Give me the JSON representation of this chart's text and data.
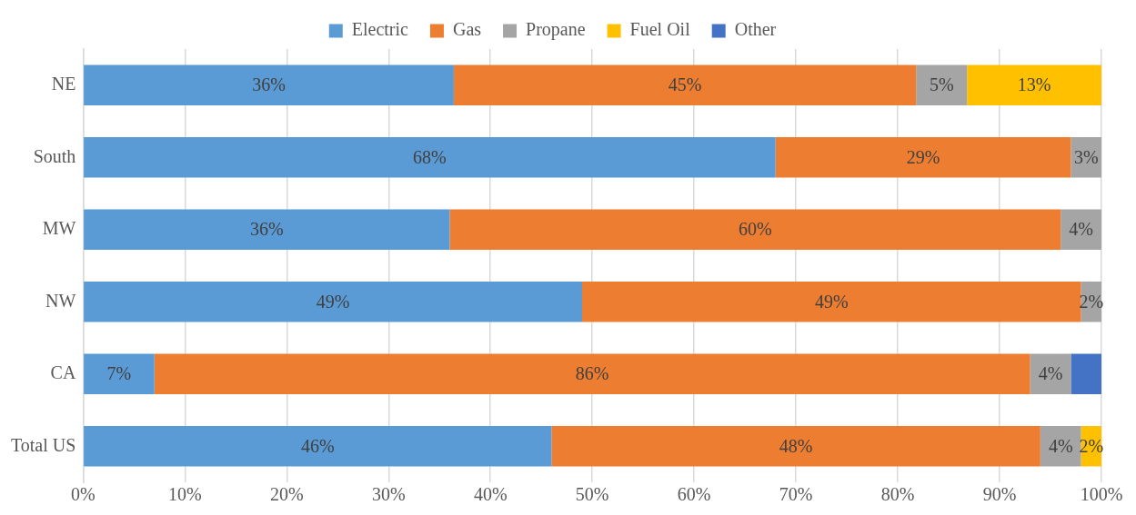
{
  "chart_data": {
    "type": "bar",
    "orientation": "horizontal",
    "stacked": true,
    "legend": "top",
    "grid": "x",
    "categories": [
      "NE",
      "South",
      "MW",
      "NW",
      "CA",
      "Total US"
    ],
    "xlim": [
      0,
      100
    ],
    "xticks": [
      {
        "value": 0,
        "label": "0%"
      },
      {
        "value": 10,
        "label": "10%"
      },
      {
        "value": 20,
        "label": "20%"
      },
      {
        "value": 30,
        "label": "30%"
      },
      {
        "value": 40,
        "label": "40%"
      },
      {
        "value": 50,
        "label": "50%"
      },
      {
        "value": 60,
        "label": "60%"
      },
      {
        "value": 70,
        "label": "70%"
      },
      {
        "value": 80,
        "label": "80%"
      },
      {
        "value": 90,
        "label": "90%"
      },
      {
        "value": 100,
        "label": "100%"
      }
    ],
    "series": [
      {
        "name": "Electric",
        "color": "#5b9bd5",
        "values": [
          36.4,
          68,
          36,
          49,
          7,
          46
        ],
        "value_labels": [
          "36%",
          "68%",
          "36%",
          "49%",
          "7%",
          "46%"
        ]
      },
      {
        "name": "Gas",
        "color": "#ed7d31",
        "values": [
          45.4,
          29,
          60,
          49,
          86,
          48
        ],
        "value_labels": [
          "45%",
          "29%",
          "60%",
          "49%",
          "86%",
          "48%"
        ]
      },
      {
        "name": "Propane",
        "color": "#a5a5a5",
        "values": [
          5,
          3,
          4,
          2,
          4,
          4
        ],
        "value_labels": [
          "5%",
          "3%",
          "4%",
          "2%",
          "4%",
          "4%"
        ]
      },
      {
        "name": "Fuel Oil",
        "color": "#ffc000",
        "values": [
          13.2,
          null,
          null,
          null,
          null,
          2
        ],
        "value_labels": [
          "13%",
          null,
          null,
          null,
          null,
          "2%"
        ]
      },
      {
        "name": "Other",
        "color": "#4472c4",
        "values": [
          null,
          null,
          null,
          null,
          3,
          null
        ],
        "value_labels": [
          null,
          null,
          null,
          null,
          null,
          null
        ]
      }
    ]
  }
}
